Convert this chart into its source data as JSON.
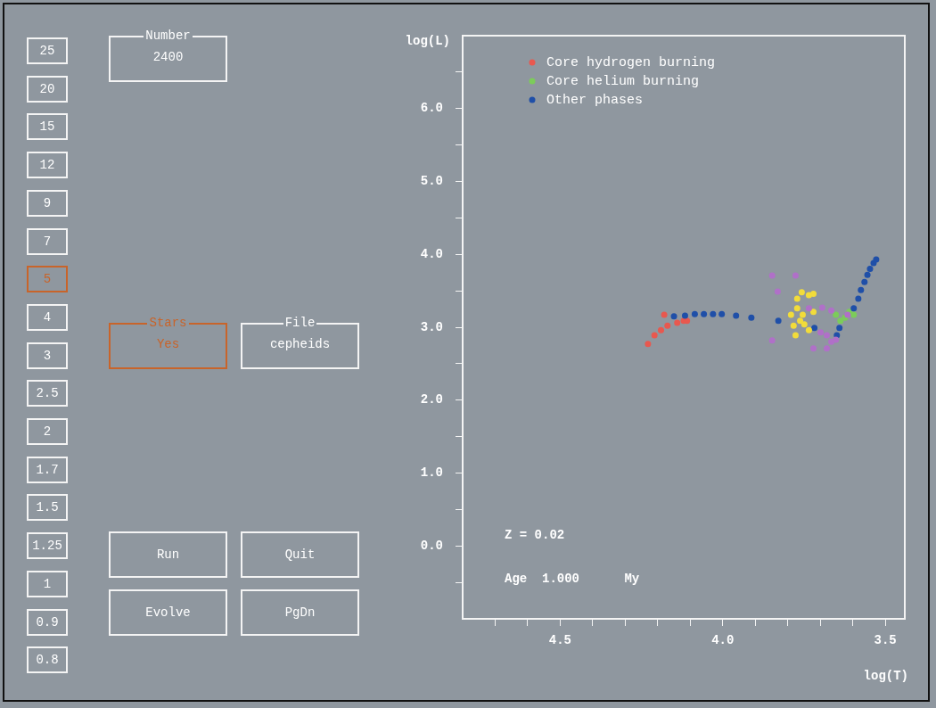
{
  "chart_data": [
    {
      "type": "other",
      "annotations": [
        "25",
        "20",
        "15",
        "12",
        "9",
        "7",
        "5",
        "4",
        "3",
        "2.5",
        "2",
        "1.7",
        "1.5",
        "1.25",
        "1",
        "0.9",
        "0.8",
        "Number",
        "2400",
        "Stars",
        "Yes",
        "File",
        "cepheids",
        "Run",
        "Quit",
        "Evolve",
        "PgDn"
      ]
    },
    {
      "type": "scatter",
      "xlabel": "log(T)",
      "ylabel": "log(L)",
      "legend": "top left",
      "marker": "circle",
      "grid": false,
      "xlim": [
        4.8,
        3.44
      ],
      "ylim": [
        -1.0,
        7.0
      ],
      "xticks": [
        {
          "value": 4.7,
          "label": null
        },
        {
          "value": 4.6,
          "label": null
        },
        {
          "value": 4.5,
          "label": "4.5"
        },
        {
          "value": 4.4,
          "label": null
        },
        {
          "value": 4.3,
          "label": null
        },
        {
          "value": 4.2,
          "label": null
        },
        {
          "value": 4.1,
          "label": null
        },
        {
          "value": 4.0,
          "label": "4.0"
        },
        {
          "value": 3.9,
          "label": null
        },
        {
          "value": 3.8,
          "label": null
        },
        {
          "value": 3.7,
          "label": null
        },
        {
          "value": 3.6,
          "label": null
        },
        {
          "value": 3.5,
          "label": "3.5"
        }
      ],
      "yticks": [
        {
          "value": -0.5,
          "label": null
        },
        {
          "value": 0,
          "label": "0.0"
        },
        {
          "value": 0.5,
          "label": null
        },
        {
          "value": 1,
          "label": "1.0"
        },
        {
          "value": 1.5,
          "label": null
        },
        {
          "value": 2,
          "label": "2.0"
        },
        {
          "value": 2.5,
          "label": null
        },
        {
          "value": 3,
          "label": "3.0"
        },
        {
          "value": 3.5,
          "label": null
        },
        {
          "value": 4,
          "label": "4.0"
        },
        {
          "value": 4.5,
          "label": null
        },
        {
          "value": 5,
          "label": "5.0"
        },
        {
          "value": 5.5,
          "label": null
        },
        {
          "value": 6,
          "label": "6.0"
        },
        {
          "value": 6.5,
          "label": null
        }
      ],
      "annotations": [
        "Z = 0.02",
        "Age  1.000      My"
      ],
      "series": [
        {
          "name": "Core hydrogen burning",
          "color": "#e8584f",
          "x": [
            4.23,
            4.21,
            4.19,
            4.17,
            4.14,
            4.12,
            4.11,
            4.18
          ],
          "values": [
            2.77,
            2.89,
            2.96,
            3.02,
            3.06,
            3.09,
            3.09,
            3.17
          ]
        },
        {
          "name": "Core helium burning",
          "color": "#7ccc5a",
          "x": [
            3.652,
            3.624,
            3.611,
            3.638,
            3.597
          ],
          "values": [
            3.17,
            3.13,
            3.21,
            3.09,
            3.17
          ]
        },
        {
          "name": "Other phases",
          "color": "#1f4fa8",
          "x": [
            4.15,
            4.116,
            4.086,
            4.058,
            4.03,
            4.003,
            3.959,
            3.912,
            3.829,
            3.718,
            3.641,
            3.649,
            3.597,
            3.583,
            3.575,
            3.564,
            3.555,
            3.547,
            3.536,
            3.528
          ],
          "values": [
            3.15,
            3.16,
            3.18,
            3.18,
            3.18,
            3.18,
            3.16,
            3.13,
            3.09,
            2.99,
            2.99,
            2.89,
            3.26,
            3.39,
            3.51,
            3.62,
            3.72,
            3.8,
            3.88,
            3.93
          ]
        },
        {
          "color": "#f2dc3a",
          "x": [
            3.757,
            3.735,
            3.721,
            3.771,
            3.771,
            3.79,
            3.754,
            3.721,
            3.782,
            3.749,
            3.735,
            3.776,
            3.762
          ],
          "values": [
            3.48,
            3.44,
            3.46,
            3.39,
            3.26,
            3.17,
            3.17,
            3.21,
            3.02,
            3.04,
            2.96,
            2.89,
            3.09
          ]
        },
        {
          "color": "#b070c8",
          "x": [
            3.848,
            3.776,
            3.831,
            3.848,
            3.735,
            3.694,
            3.666,
            3.699,
            3.68,
            3.666,
            3.721,
            3.68,
            3.652,
            3.616
          ],
          "values": [
            3.71,
            3.71,
            3.49,
            2.82,
            3.26,
            3.27,
            3.23,
            2.93,
            2.89,
            2.8,
            2.71,
            2.71,
            2.83,
            3.17
          ]
        }
      ]
    }
  ]
}
